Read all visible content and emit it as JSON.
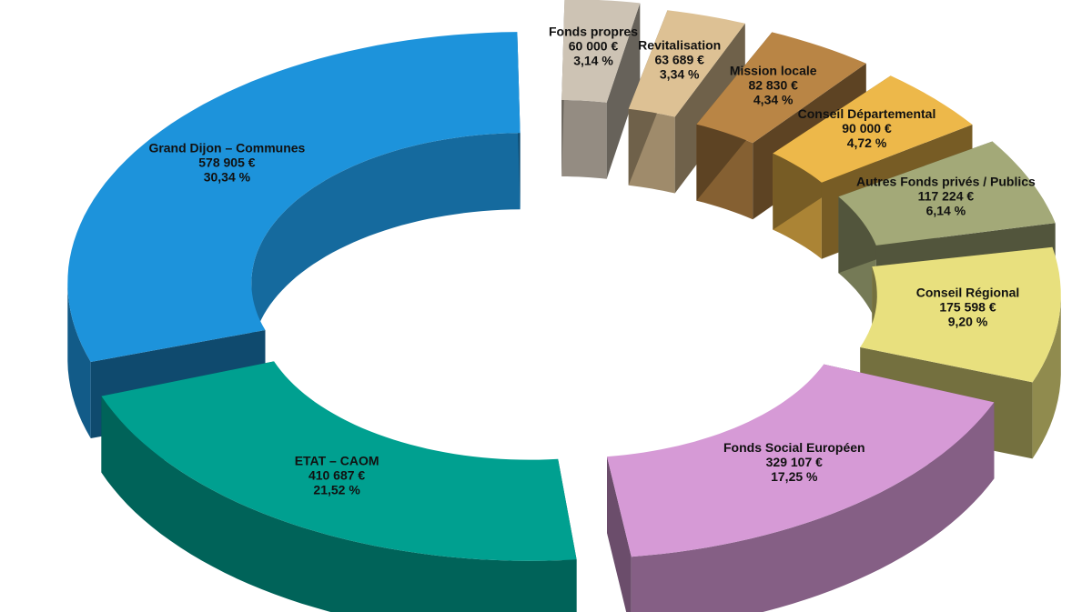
{
  "chart_data": {
    "type": "pie",
    "style": "exploded 3D doughnut",
    "segments": [
      {
        "name": "Fonds propres",
        "value_label": "60 000 €",
        "percent_label": "3,14 %",
        "value": 60000,
        "percent": 3.14,
        "color": "#CDC3B4"
      },
      {
        "name": "Revitalisation",
        "value_label": "63 689 €",
        "percent_label": "3,34 %",
        "value": 63689,
        "percent": 3.34,
        "color": "#DDC194"
      },
      {
        "name": "Mission locale",
        "value_label": "82 830 €",
        "percent_label": "4,34 %",
        "value": 82830,
        "percent": 4.34,
        "color": "#B98545"
      },
      {
        "name": "Conseil Départemental",
        "value_label": "90 000 €",
        "percent_label": "4,72 %",
        "value": 90000,
        "percent": 4.72,
        "color": "#EDB84A"
      },
      {
        "name": "Autres Fonds privés / Publics",
        "value_label": "117 224 €",
        "percent_label": "6,14 %",
        "value": 117224,
        "percent": 6.14,
        "color": "#A3A978"
      },
      {
        "name": "Conseil Régional",
        "value_label": "175 598 €",
        "percent_label": "9,20 %",
        "value": 175598,
        "percent": 9.2,
        "color": "#E8E07E"
      },
      {
        "name": "Fonds Social Européen",
        "value_label": "329 107 €",
        "percent_label": "17,25 %",
        "value": 329107,
        "percent": 17.25,
        "color": "#D69AD6"
      },
      {
        "name": "ETAT – CAOM",
        "value_label": "410 687 €",
        "percent_label": "21,52 %",
        "value": 410687,
        "percent": 21.52,
        "color": "#00A090"
      },
      {
        "name": "Grand Dijon – Communes",
        "value_label": "578 905 €",
        "percent_label": "30,34 %",
        "value": 578905,
        "percent": 30.34,
        "color": "#1D93DB"
      }
    ]
  }
}
